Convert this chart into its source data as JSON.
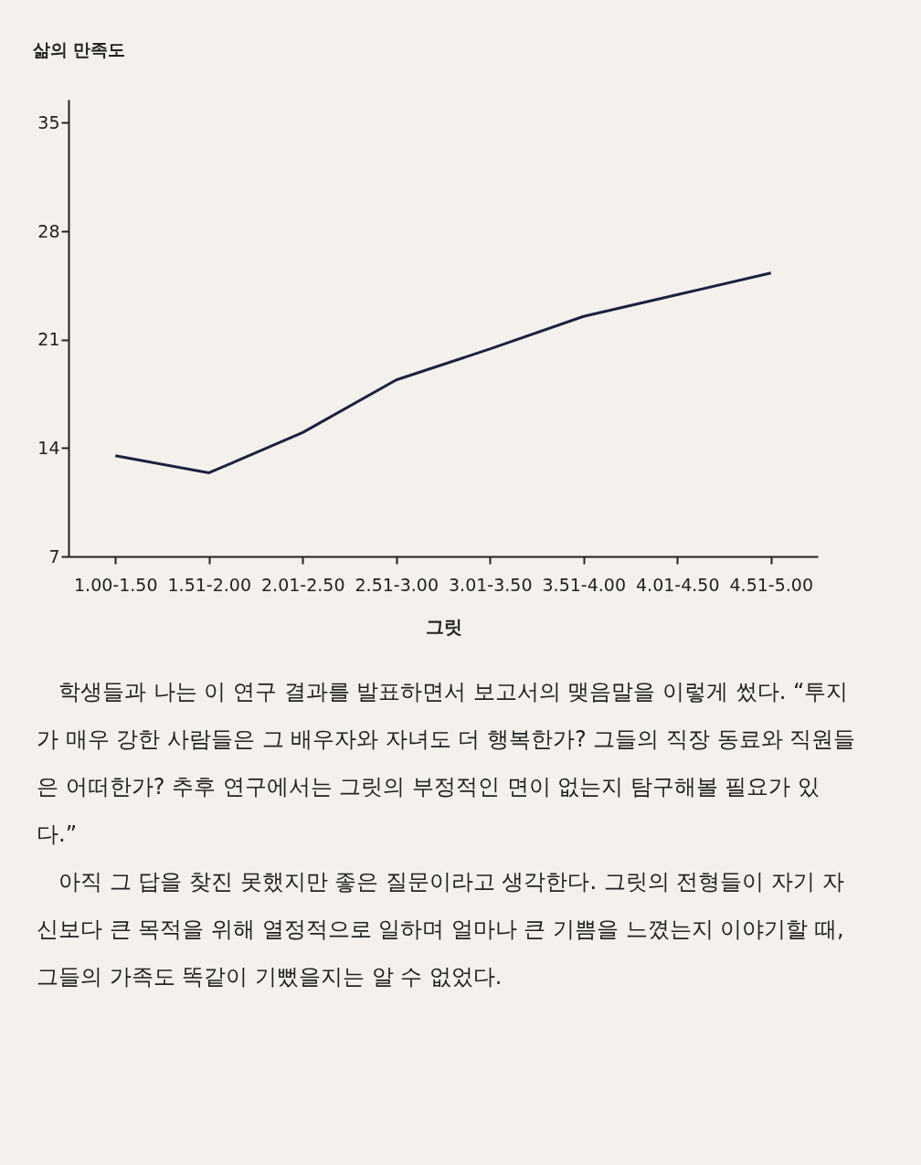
{
  "chart_data": {
    "type": "line",
    "xlabel": "그릿",
    "ylabel": "삶의 만족도",
    "categories": [
      "1.00-1.50",
      "1.51-2.00",
      "2.01-2.50",
      "2.51-3.00",
      "3.01-3.50",
      "3.51-4.00",
      "4.01-4.50",
      "4.51-5.00"
    ],
    "series": [
      {
        "color": "#1c2140",
        "values": [
          13.5,
          12.4,
          15.0,
          18.4,
          20.4,
          22.5,
          23.9,
          25.3
        ]
      }
    ],
    "ylim": [
      7,
      36.5
    ],
    "yticks": [
      7,
      14,
      21,
      28,
      35
    ],
    "grid": false,
    "marker": "none",
    "line_style": "solid",
    "annotations": [
      "학생들과 나는 이 연구 결과를 발표하면서 보고서의 맺음말을 이렇게 썼다. “투지가 매우 강한 사람들은 그 배우자와 자녀도 더 행복한가? 그들의 직장 동료와 직원들은 어떠한가? 추후 연구에서는 그릿의 부정적인 면이 없는지 탐구해볼 필요가 있다.”",
      "아직 그 답을 찾진 못했지만 좋은 질문이라고 생각한다. 그릿의 전형들이 자기 자신보다 큰 목적을 위해 열정적으로 일하며 얼마나 큰 기쁨을 느꼈는지 이야기할 때, 그들의 가족도 똑같이 기뻤을지는 알 수 없었다."
    ]
  }
}
